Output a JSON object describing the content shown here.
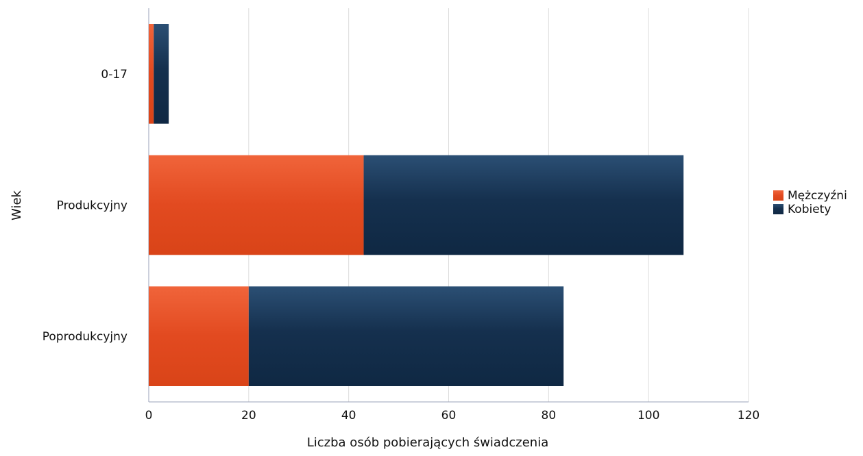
{
  "chart_data": {
    "type": "bar",
    "orientation": "horizontal",
    "stacked": true,
    "title": "",
    "xlabel": "Liczba osób pobierających świadczenia",
    "ylabel": "Wiek",
    "categories": [
      "0-17",
      "Produkcyjny",
      "Poprodukcyjny"
    ],
    "series": [
      {
        "name": "Mężczyźni",
        "values": [
          1,
          43,
          20
        ],
        "color": "#e8552b"
      },
      {
        "name": "Kobiety",
        "values": [
          3,
          64,
          63
        ],
        "color": "#1f3d5c"
      }
    ],
    "xlim": [
      0,
      120
    ],
    "xticks": [
      0,
      20,
      40,
      60,
      80,
      100,
      120
    ],
    "grid": true,
    "legend_position": "right"
  }
}
